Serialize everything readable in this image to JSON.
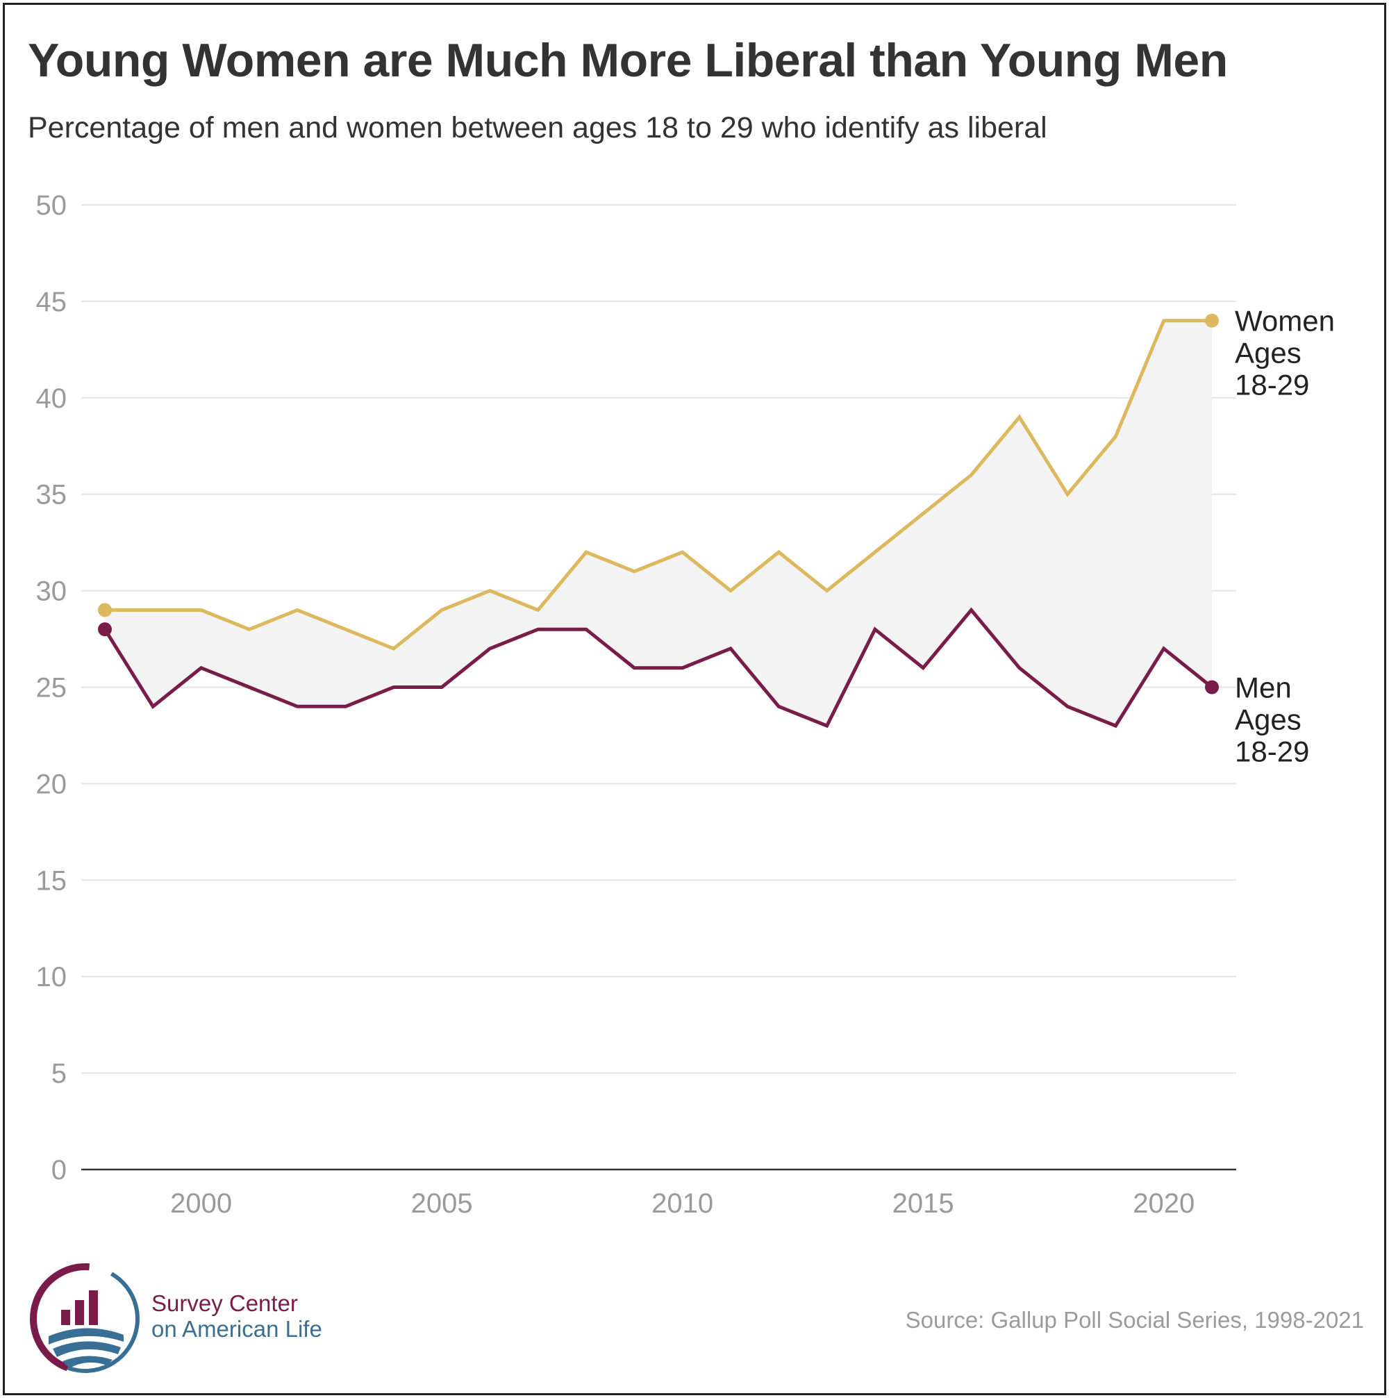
{
  "header": {
    "title": "Young Women are Much More Liberal than Young Men",
    "subtitle": "Percentage of men and women between ages 18 to 29 who identify as liberal"
  },
  "footer": {
    "brand_line1": "Survey Center",
    "brand_line2": "on American Life",
    "source": "Source: Gallup Poll Social Series, 1998-2021"
  },
  "colors": {
    "women": "#dcb85f",
    "men": "#7a1c4a",
    "gap_fill": "#f3f3f3",
    "grid": "#e4e4e4",
    "axis": "#333333",
    "tick_text": "#9a9a9a",
    "label_text": "#222222"
  },
  "chart_data": {
    "type": "line",
    "title": "Young Women are Much More Liberal than Young Men",
    "subtitle": "Percentage of men and women between ages 18 to 29 who identify as liberal",
    "xlabel": "",
    "ylabel": "",
    "x": [
      1998,
      1999,
      2000,
      2001,
      2002,
      2003,
      2004,
      2005,
      2006,
      2007,
      2008,
      2009,
      2010,
      2011,
      2012,
      2013,
      2014,
      2015,
      2016,
      2017,
      2018,
      2019,
      2020,
      2021
    ],
    "xlim": [
      1996,
      2022
    ],
    "ylim": [
      0,
      50
    ],
    "xticks": [
      2000,
      2005,
      2010,
      2015,
      2020
    ],
    "yticks": [
      0,
      5,
      10,
      15,
      20,
      25,
      30,
      35,
      40,
      45,
      50
    ],
    "grid": true,
    "legend": "direct labels at line ends",
    "series": [
      {
        "key": "women",
        "label_lines": [
          "Women",
          "Ages",
          "18-29"
        ],
        "color": "#dcb85f",
        "values": [
          29,
          29,
          29,
          28,
          29,
          28,
          27,
          29,
          30,
          29,
          32,
          31,
          32,
          30,
          32,
          30,
          32,
          34,
          36,
          39,
          35,
          38,
          44,
          44
        ]
      },
      {
        "key": "men",
        "label_lines": [
          "Men",
          "Ages",
          "18-29"
        ],
        "color": "#7a1c4a",
        "values": [
          28,
          24,
          26,
          25,
          24,
          24,
          25,
          25,
          27,
          28,
          28,
          26,
          26,
          27,
          24,
          23,
          28,
          26,
          29,
          26,
          24,
          23,
          27,
          25
        ]
      }
    ],
    "source": "Source: Gallup Poll Social Series, 1998-2021"
  }
}
